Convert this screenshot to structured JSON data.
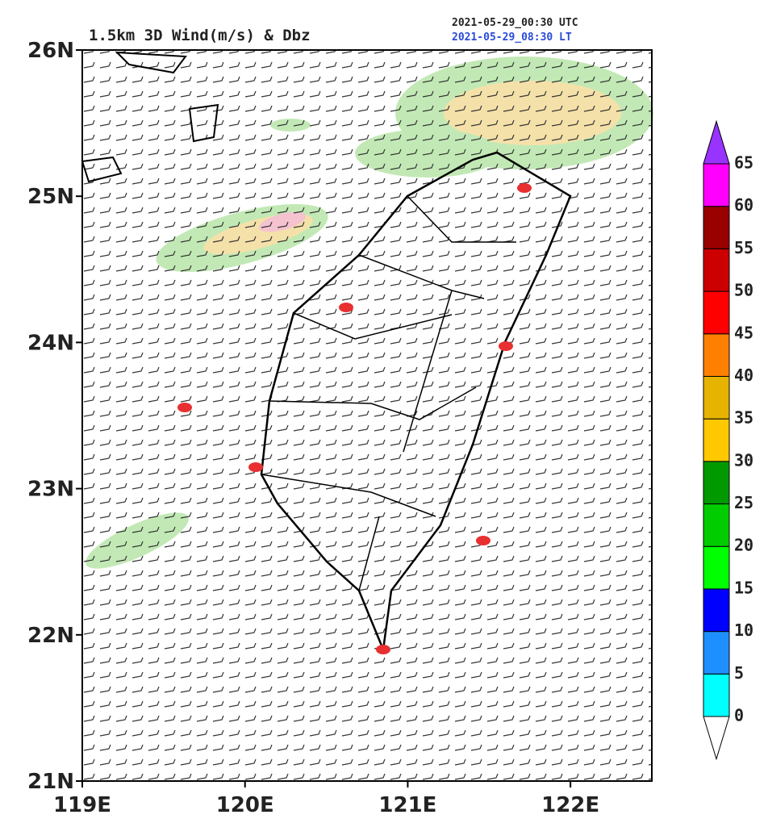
{
  "map": {
    "title": "1.5km 3D Wind(m/s) & Dbz",
    "time_utc": "2021-05-29_00:30 UTC",
    "time_lt": "2021-05-29_08:30 LT",
    "xlim": [
      119,
      122.5
    ],
    "ylim": [
      21,
      26
    ],
    "xticks": [
      {
        "value": 119,
        "label": "119E"
      },
      {
        "value": 120,
        "label": "120E"
      },
      {
        "value": 121,
        "label": "121E"
      },
      {
        "value": 122,
        "label": "122E"
      }
    ],
    "yticks": [
      {
        "value": 21,
        "label": "21N"
      },
      {
        "value": 22,
        "label": "22N"
      },
      {
        "value": 23,
        "label": "23N"
      },
      {
        "value": 24,
        "label": "24N"
      },
      {
        "value": 25,
        "label": "25N"
      },
      {
        "value": 26,
        "label": "26N"
      }
    ],
    "colorbar": {
      "ticks": [
        0,
        5,
        10,
        15,
        20,
        25,
        30,
        35,
        40,
        45,
        50,
        55,
        60,
        65
      ],
      "colors": [
        "#ffffff",
        "#00ffff",
        "#1e8fff",
        "#0000ff",
        "#00ff00",
        "#00cc00",
        "#009900",
        "#ffc800",
        "#e6b400",
        "#ff8000",
        "#ff0000",
        "#cc0000",
        "#990000",
        "#ff00ff",
        "#9933ff"
      ]
    }
  }
}
